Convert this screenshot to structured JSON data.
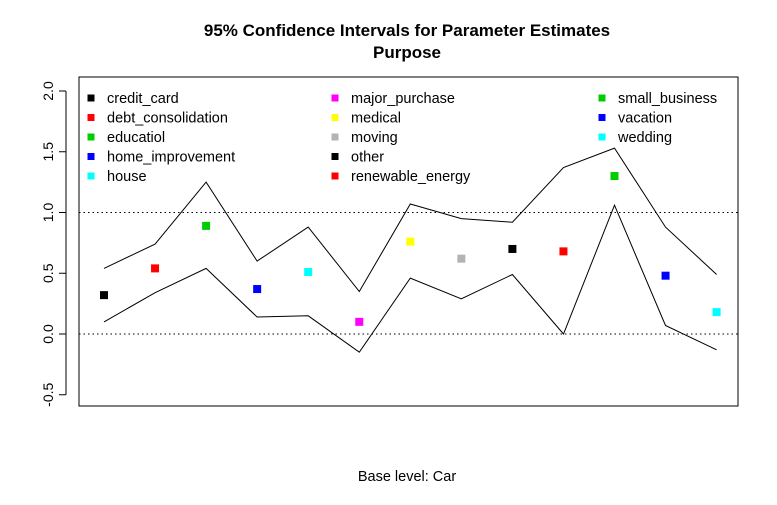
{
  "chart_data": {
    "type": "scatter",
    "title": "95% Confidence Intervals for Parameter Estimates",
    "subtitle": "Purpose",
    "xlabel": "Base level: Car",
    "ylabel": "",
    "ylim": [
      -0.5,
      2.0
    ],
    "yticks": [
      "-0.5",
      "0.0",
      "0.5",
      "1.0",
      "1.5",
      "2.0"
    ],
    "ytick_values": [
      -0.5,
      0.0,
      0.5,
      1.0,
      1.5,
      2.0
    ],
    "reference_lines": [
      0.0,
      1.0
    ],
    "grid": false,
    "legend_position": "top",
    "categories": [
      "credit_card",
      "debt_consolidation",
      "educatiol",
      "home_improvement",
      "house",
      "major_purchase",
      "medical",
      "moving",
      "other",
      "renewable_energy",
      "small_business",
      "vacation",
      "wedding"
    ],
    "colors": [
      "#000000",
      "#ff0000",
      "#00cd00",
      "#0000ff",
      "#00ffff",
      "#ff00ff",
      "#ffff00",
      "#b3b3b3",
      "#000000",
      "#ff0000",
      "#00cd00",
      "#0000ff",
      "#00ffff"
    ],
    "estimates": [
      0.32,
      0.54,
      0.89,
      0.37,
      0.51,
      0.1,
      0.76,
      0.62,
      0.7,
      0.68,
      1.3,
      0.48,
      0.18
    ],
    "upper": [
      0.54,
      0.74,
      1.25,
      0.6,
      0.88,
      0.35,
      1.07,
      0.95,
      0.92,
      1.37,
      1.53,
      0.88,
      0.49
    ],
    "lower": [
      0.1,
      0.34,
      0.54,
      0.14,
      0.15,
      -0.15,
      0.46,
      0.29,
      0.49,
      0.0,
      1.06,
      0.07,
      -0.13
    ]
  }
}
